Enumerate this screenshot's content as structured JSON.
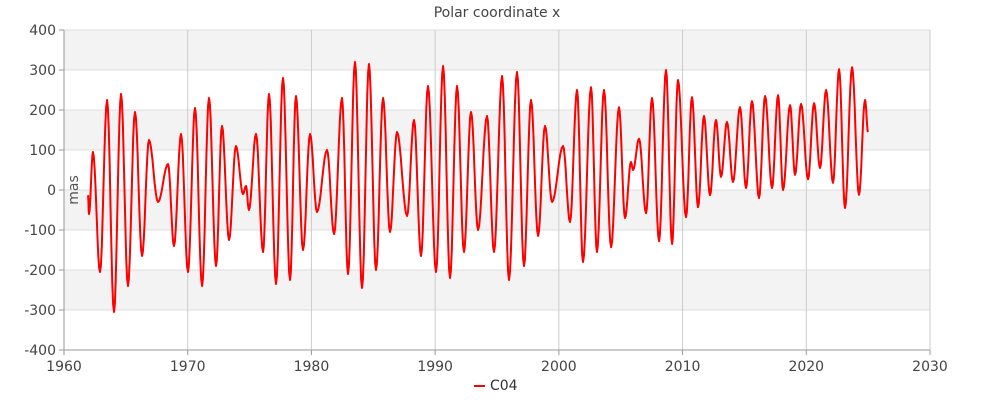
{
  "chart_data": {
    "type": "line",
    "title": "Polar coordinate x",
    "xlabel": "",
    "ylabel": "mas",
    "xlim": [
      1960,
      2030
    ],
    "ylim": [
      -400,
      400
    ],
    "xticks": [
      "1960",
      "1970",
      "1980",
      "1990",
      "2000",
      "2010",
      "2020",
      "2030"
    ],
    "yticks": [
      "400",
      "300",
      "200",
      "100",
      "0",
      "-100",
      "-200",
      "-300",
      "-400"
    ],
    "grid": true,
    "legend_position": "bottom-center",
    "series": [
      {
        "name": "C04",
        "color": "#ff0000",
        "x": [
          1961.94,
          1962.02,
          1962.34,
          1962.91,
          1963.48,
          1964.04,
          1964.61,
          1965.17,
          1965.74,
          1966.31,
          1966.87,
          1967.6,
          1968.41,
          1968.89,
          1969.46,
          1970.02,
          1970.59,
          1971.16,
          1971.72,
          1972.29,
          1972.77,
          1973.34,
          1973.9,
          1974.47,
          1974.71,
          1974.95,
          1975.52,
          1976.09,
          1976.57,
          1977.14,
          1977.7,
          1978.27,
          1978.75,
          1979.32,
          1979.89,
          1980.45,
          1981.26,
          1981.83,
          1982.47,
          1982.96,
          1983.52,
          1984.09,
          1984.65,
          1985.22,
          1985.79,
          1986.35,
          1986.92,
          1987.73,
          1988.29,
          1988.86,
          1989.42,
          1990.07,
          1990.64,
          1991.2,
          1991.77,
          1992.33,
          1992.9,
          1993.47,
          1994.19,
          1994.76,
          1995.41,
          1995.97,
          1996.62,
          1997.18,
          1997.75,
          1998.32,
          1998.88,
          1999.45,
          2000.34,
          2000.9,
          2001.47,
          2001.95,
          2002.6,
          2003.08,
          2003.65,
          2004.22,
          2004.86,
          2005.35,
          2005.83,
          2006.0,
          2006.48,
          2007.05,
          2007.53,
          2008.1,
          2008.66,
          2009.15,
          2009.63,
          2010.28,
          2010.76,
          2011.25,
          2011.73,
          2012.22,
          2012.7,
          2013.11,
          2013.59,
          2014.08,
          2014.64,
          2015.13,
          2015.61,
          2016.18,
          2016.67,
          2017.23,
          2017.72,
          2018.12,
          2018.69,
          2019.09,
          2019.58,
          2020.14,
          2020.63,
          2021.11,
          2021.6,
          2022.16,
          2022.65,
          2023.13,
          2023.7,
          2024.26,
          2024.75,
          2024.99
        ],
        "y": [
          -13,
          -60,
          95,
          -205,
          225,
          -305,
          240,
          -240,
          195,
          -165,
          125,
          -30,
          65,
          -140,
          140,
          -205,
          205,
          -240,
          230,
          -190,
          160,
          -125,
          110,
          -10,
          10,
          -50,
          140,
          -155,
          240,
          -235,
          280,
          -225,
          235,
          -150,
          140,
          -55,
          100,
          -110,
          230,
          -210,
          320,
          -245,
          315,
          -200,
          230,
          -105,
          145,
          -65,
          175,
          -165,
          260,
          -205,
          310,
          -220,
          260,
          -155,
          195,
          -100,
          185,
          -155,
          285,
          -225,
          295,
          -190,
          225,
          -115,
          160,
          -30,
          110,
          -80,
          250,
          -180,
          257,
          -155,
          250,
          -143,
          207,
          -70,
          70,
          50,
          128,
          -58,
          230,
          -128,
          300,
          -135,
          275,
          -68,
          232,
          -43,
          185,
          -13,
          175,
          33,
          170,
          20,
          207,
          5,
          222,
          -20,
          235,
          5,
          237,
          0,
          212,
          38,
          215,
          27,
          217,
          55,
          250,
          18,
          302,
          -45,
          307,
          -12,
          225,
          145
        ]
      }
    ]
  }
}
